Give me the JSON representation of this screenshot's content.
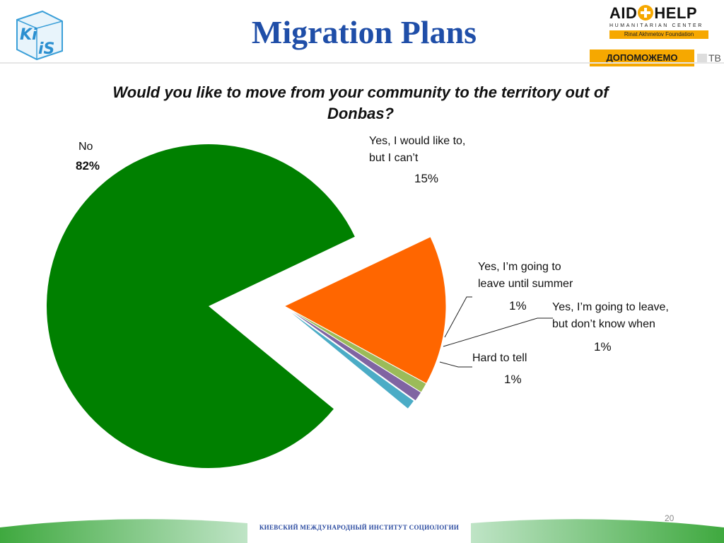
{
  "header": {
    "title": "Migration Plans",
    "logo_left_text": "KiiS",
    "logo_right_brand": "AID HELP",
    "logo_right_subtitle": "HUMANITARIAN CENTER",
    "logo_right_foundation": "Rinat Akhmetov Foundation",
    "logo_bottom_text": "ДОПОМОЖЕМО",
    "logo_bottom_tv": "ТВ"
  },
  "chart_data": {
    "type": "pie",
    "title": "Would you like to move from your community to the territory out of Donbas?",
    "slices": [
      {
        "label": "No",
        "value": 82,
        "value_label": "82%",
        "color": "#008000"
      },
      {
        "label": "Yes, I would like to, but I can’t",
        "value": 15,
        "value_label": "15%",
        "color": "#ff6600"
      },
      {
        "label": "Yes, I’m going to leave until summer",
        "value": 1,
        "value_label": "1%",
        "color": "#9bbb59"
      },
      {
        "label": "Yes, I’m going to leave, but don’t know when",
        "value": 1,
        "value_label": "1%",
        "color": "#8064a2"
      },
      {
        "label": "Hard to tell",
        "value": 1,
        "value_label": "1%",
        "color": "#4bacc6"
      }
    ],
    "legend": "none"
  },
  "labels": {
    "no_line1": "No",
    "yes_cant_line1": "Yes, I would like to,",
    "yes_cant_line2": "but I can’t",
    "summer_line1": "Yes, I’m going to",
    "summer_line2": "leave until summer",
    "when_line1": "Yes, I’m going to leave,",
    "when_line2": "but don’t know when",
    "hard_line1": "Hard to tell"
  },
  "footer": {
    "institute": "КИЕВСКИЙ МЕЖДУНАРОДНЫЙ ИНСТИТУТ СОЦИОЛОГИИ",
    "page_number": "20"
  },
  "colors": {
    "title": "#1f4ea8",
    "accent": "#f6a800"
  }
}
